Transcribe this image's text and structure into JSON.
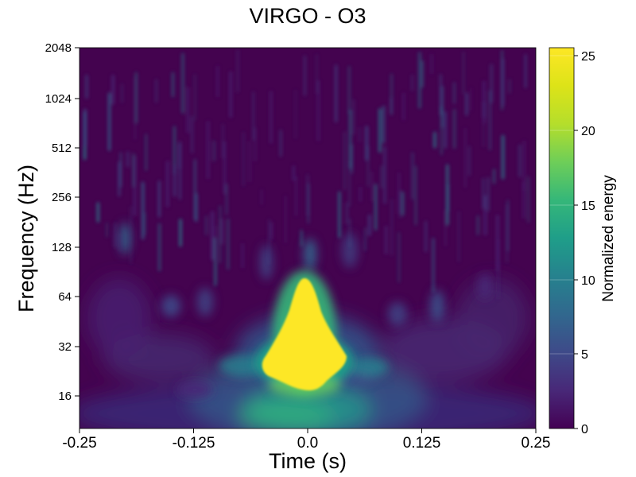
{
  "chart_data": {
    "type": "heatmap",
    "title": "VIRGO - O3",
    "xlabel": "Time (s)",
    "ylabel": "Frequency (Hz)",
    "xlim": [
      -0.25,
      0.25
    ],
    "ylim": [
      10,
      2048
    ],
    "y_scale": "log2",
    "x_ticks": [
      -0.25,
      -0.125,
      0.0,
      0.125,
      0.25
    ],
    "x_tick_labels": [
      "-0.25",
      "-0.125",
      "0.0",
      "0.125",
      "0.25"
    ],
    "y_ticks": [
      16,
      32,
      64,
      128,
      256,
      512,
      1024,
      2048
    ],
    "y_tick_labels": [
      "16",
      "32",
      "64",
      "128",
      "256",
      "512",
      "1024",
      "2048"
    ],
    "grid": false,
    "colormap": "viridis",
    "colorbar": {
      "label": "Normalized energy",
      "range": [
        0,
        25.5
      ],
      "ticks": [
        0,
        5,
        10,
        15,
        20,
        25
      ],
      "tick_labels": [
        "0",
        "5",
        "10",
        "15",
        "20",
        "25"
      ]
    },
    "features": [
      {
        "kind": "saturated-blob",
        "t_center": 0.0,
        "f_low": 18,
        "f_high": 90,
        "energy": 25.5
      },
      {
        "kind": "base-glow",
        "t_range": [
          -0.1,
          0.1
        ],
        "f_range": [
          10,
          18
        ],
        "energy": 12
      },
      {
        "kind": "background-streaks",
        "f_range": [
          128,
          2048
        ],
        "energy": 3
      }
    ]
  }
}
